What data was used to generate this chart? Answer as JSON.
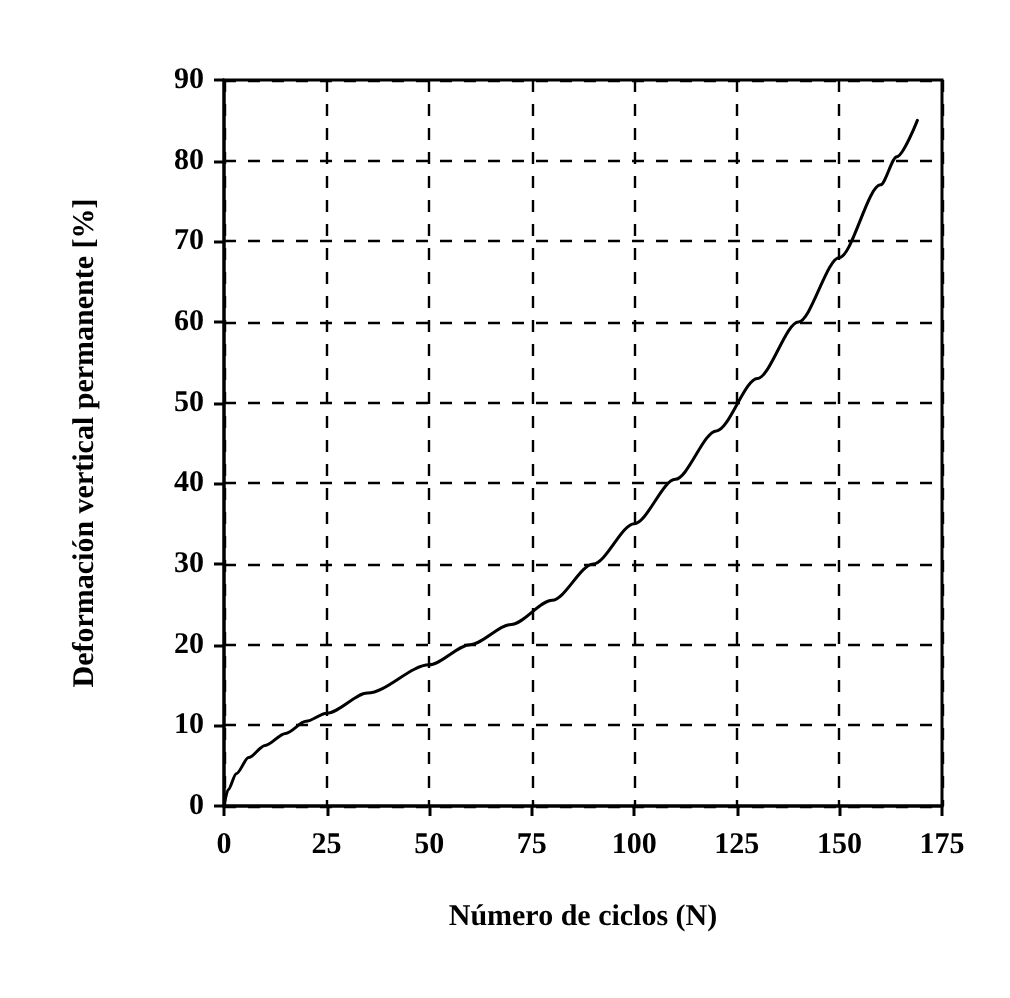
{
  "chart_data": {
    "type": "line",
    "xlabel": "Número de ciclos (N)",
    "ylabel": "Deformación vertical permanente [%]",
    "x": [
      0,
      1,
      3,
      6,
      10,
      15,
      20,
      25,
      35,
      50,
      60,
      70,
      80,
      90,
      100,
      110,
      120,
      130,
      140,
      150,
      160,
      164,
      169
    ],
    "series": [
      {
        "color": "#000000",
        "values": [
          0,
          2,
          4,
          6,
          7.5,
          9,
          10.5,
          11.5,
          14,
          17.5,
          20,
          22.5,
          25.5,
          30,
          35,
          40.5,
          46.5,
          53,
          60,
          68,
          77,
          80.5,
          85
        ]
      }
    ],
    "xlim": [
      0,
      175
    ],
    "xticks": [
      0,
      25,
      50,
      75,
      100,
      125,
      150,
      175
    ],
    "ylim": [
      0,
      90
    ],
    "yticks": [
      0,
      10,
      20,
      30,
      40,
      50,
      60,
      70,
      80,
      90
    ],
    "grid": true,
    "line_style": "solid",
    "marker": "none"
  }
}
